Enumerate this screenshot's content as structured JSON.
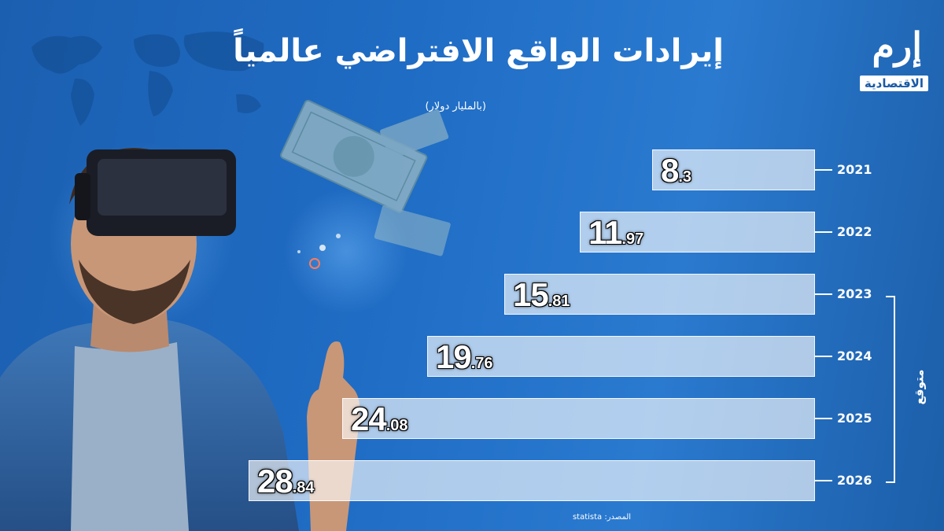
{
  "title": "إيرادات الواقع الافتراضي عالمياً",
  "subtitle": "(بالمليار دولار)",
  "logo": {
    "main": "إرم",
    "sub": "الاقتصادية"
  },
  "source": "المصدر: statista",
  "forecast_label": "متوقع",
  "chart_data": {
    "type": "bar",
    "orientation": "horizontal",
    "title": "إيرادات الواقع الافتراضي عالمياً",
    "unit": "(بالمليار دولار)",
    "categories": [
      "2021",
      "2022",
      "2023",
      "2024",
      "2025",
      "2026"
    ],
    "values": [
      8.3,
      11.97,
      15.81,
      19.76,
      24.08,
      28.84
    ],
    "value_labels": [
      {
        "int": "8",
        "dec": ".3"
      },
      {
        "int": "11",
        "dec": ".97"
      },
      {
        "int": "15",
        "dec": ".81"
      },
      {
        "int": "19",
        "dec": ".76"
      },
      {
        "int": "24",
        "dec": ".08"
      },
      {
        "int": "28",
        "dec": ".84"
      }
    ],
    "forecast_range": [
      "2023",
      "2026"
    ],
    "bar_color": "#d6e6f7",
    "background_color": "#1f6cc4",
    "grid": false,
    "legend": "none"
  }
}
